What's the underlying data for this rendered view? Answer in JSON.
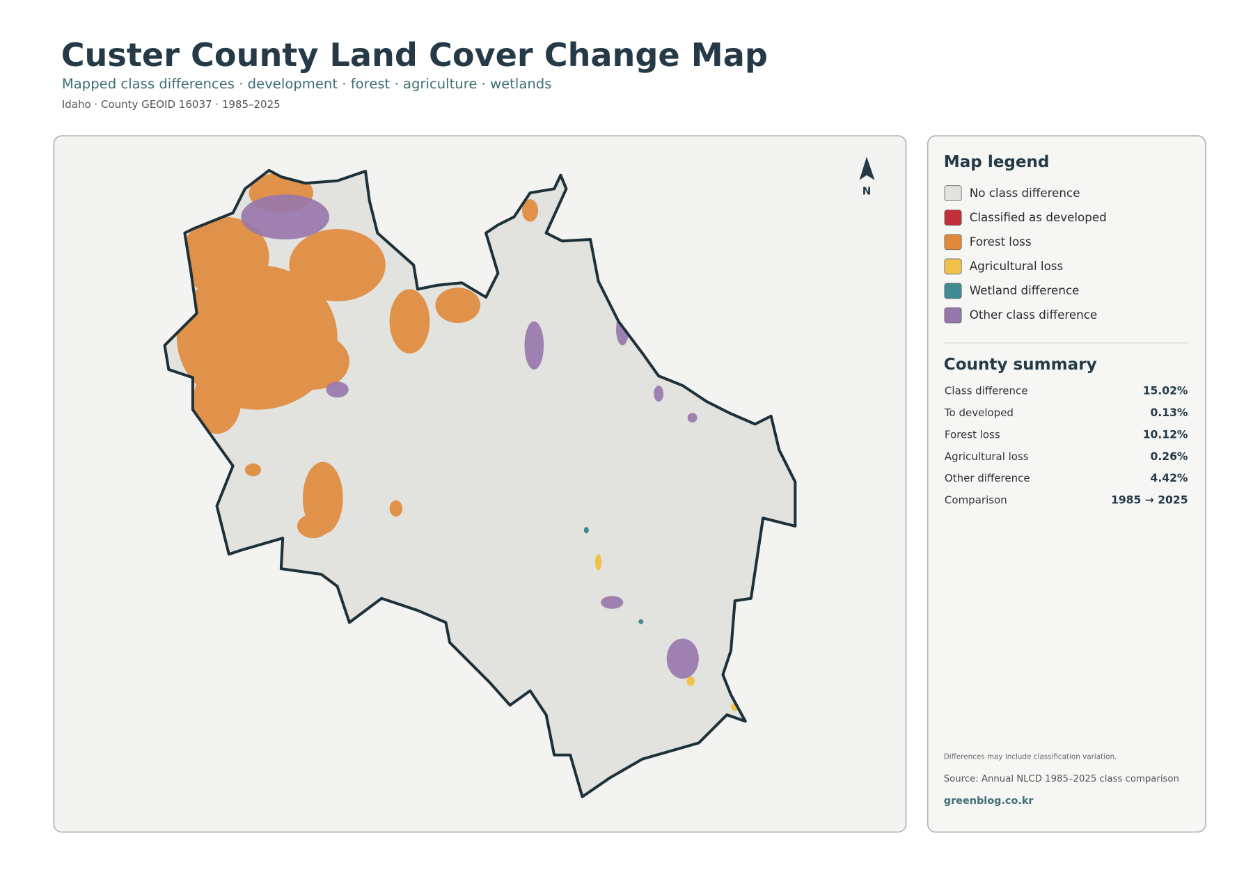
{
  "header": {
    "title": "Custer County Land Cover Change Map",
    "subtitle": "Mapped class differences · development · forest · agriculture · wetlands",
    "meta": "Idaho · County GEOID 16037 · 1985–2025"
  },
  "map": {
    "north_label": "N"
  },
  "legend": {
    "title": "Map legend",
    "items": [
      {
        "label": "No class difference",
        "color": "#e2e2df"
      },
      {
        "label": "Classified as developed",
        "color": "#c22f3b"
      },
      {
        "label": "Forest loss",
        "color": "#e08a3a"
      },
      {
        "label": "Agricultural loss",
        "color": "#f0c24a"
      },
      {
        "label": "Wetland difference",
        "color": "#3f8b91"
      },
      {
        "label": "Other class difference",
        "color": "#9777ab"
      }
    ]
  },
  "summary": {
    "title": "County summary",
    "rows": [
      [
        "Class difference",
        "15.02%"
      ],
      [
        "To developed",
        "0.13%"
      ],
      [
        "Forest loss",
        "10.12%"
      ],
      [
        "Agricultural loss",
        "0.26%"
      ],
      [
        "Other difference",
        "4.42%"
      ],
      [
        "Comparison",
        "1985 → 2025"
      ]
    ]
  },
  "footer": {
    "note": "Differences may include classification variation.",
    "source": "Source: Annual NLCD 1985–2025 class comparison",
    "site": "greenblog.co.kr"
  }
}
